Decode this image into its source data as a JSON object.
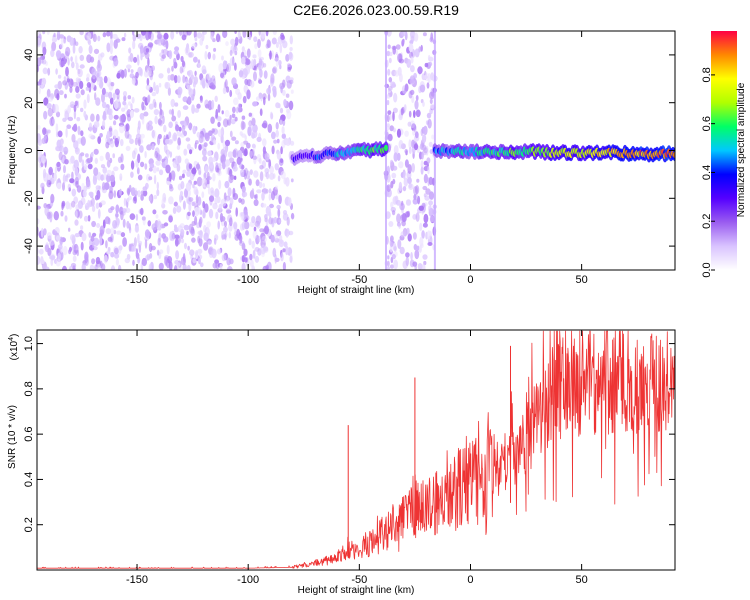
{
  "figure_title": "C2E6.2026.023.00.59.R19",
  "chart_data": [
    {
      "type": "heatmap",
      "title": "C2E6.2026.023.00.59.R19",
      "xlabel": "Height of straight line (km)",
      "ylabel": "Frequency (Hz)",
      "xlim": [
        -195,
        92
      ],
      "ylim": [
        -50,
        50
      ],
      "xticks": [
        -150,
        -100,
        -50,
        0,
        50
      ],
      "yticks": [
        -40,
        -20,
        0,
        20,
        40
      ],
      "colorbar": {
        "label": "Normalized spectral amplitude",
        "range": [
          0,
          0.98
        ],
        "ticks": [
          "0.0",
          "0.2",
          "0.4",
          "0.6",
          "0.8"
        ],
        "tick_values": [
          0.0,
          0.2,
          0.4,
          0.6,
          0.8
        ],
        "colormap": [
          "#ffffff",
          "#d9c3ff",
          "#9a5cf0",
          "#5500ff",
          "#0000ff",
          "#00c8ff",
          "#00ff66",
          "#b0ff00",
          "#ffff00",
          "#ff8800",
          "#ff0044"
        ]
      },
      "regions": [
        {
          "name": "broadband noise",
          "x": [
            -195,
            -80
          ],
          "freq": [
            -50,
            50
          ],
          "amplitude": 0.15
        },
        {
          "name": "noise band",
          "x": [
            -38,
            -16
          ],
          "freq": [
            -50,
            50
          ],
          "amplitude": 0.15
        },
        {
          "name": "signal",
          "x": [
            -80,
            -38
          ],
          "freq_center": [
            -3,
            1
          ],
          "amplitude": [
            0.3,
            0.65
          ]
        },
        {
          "name": "signal",
          "x": [
            -16,
            92
          ],
          "freq_center": [
            0,
            -1.5
          ],
          "amplitude": [
            0.45,
            0.95
          ]
        }
      ]
    },
    {
      "type": "line",
      "xlabel": "Height of straight line (km)",
      "ylabel": "SNR (10 * v/v)",
      "y_scale_label": "(x10",
      "y_scale_exponent": "4",
      "y_scale_close": ")",
      "xlim": [
        -195,
        92
      ],
      "ylim": [
        0,
        1.06
      ],
      "xticks": [
        -150,
        -100,
        -50,
        0,
        50
      ],
      "yticks": [
        0.2,
        0.4,
        0.6,
        0.8,
        1.0
      ],
      "series": [
        {
          "name": "SNR",
          "color": "#ee3333",
          "x": [
            -195,
            -180,
            -160,
            -140,
            -120,
            -100,
            -90,
            -80,
            -75,
            -70,
            -65,
            -60,
            -55,
            -50,
            -45,
            -40,
            -35,
            -30,
            -25,
            -20,
            -15,
            -10,
            -5,
            0,
            5,
            10,
            15,
            20,
            25,
            30,
            35,
            40,
            50,
            60,
            70,
            80,
            85,
            90,
            92
          ],
          "y": [
            0.008,
            0.008,
            0.008,
            0.008,
            0.008,
            0.008,
            0.01,
            0.012,
            0.02,
            0.03,
            0.04,
            0.05,
            0.09,
            0.08,
            0.12,
            0.16,
            0.2,
            0.23,
            0.26,
            0.28,
            0.3,
            0.33,
            0.36,
            0.38,
            0.41,
            0.44,
            0.47,
            0.51,
            0.57,
            0.68,
            0.75,
            0.8,
            0.82,
            0.83,
            0.83,
            0.84,
            0.83,
            0.82,
            0.82
          ]
        }
      ],
      "annotations": [
        {
          "x": -55,
          "y": 0.64
        },
        {
          "x": -25,
          "y": 0.85
        },
        {
          "x": 18,
          "y": 0.99
        },
        {
          "x": 92,
          "y": 1.03
        }
      ]
    }
  ]
}
